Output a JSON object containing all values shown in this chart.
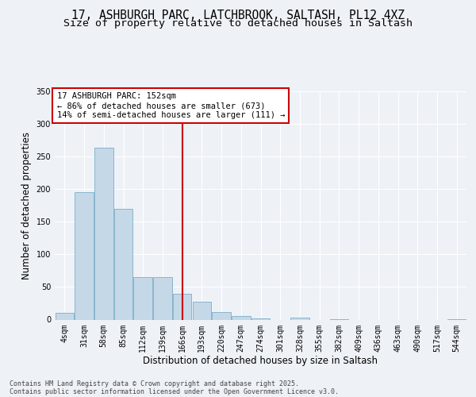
{
  "title_line1": "17, ASHBURGH PARC, LATCHBROOK, SALTASH, PL12 4XZ",
  "title_line2": "Size of property relative to detached houses in Saltash",
  "xlabel": "Distribution of detached houses by size in Saltash",
  "ylabel": "Number of detached properties",
  "bar_labels": [
    "4sqm",
    "31sqm",
    "58sqm",
    "85sqm",
    "112sqm",
    "139sqm",
    "166sqm",
    "193sqm",
    "220sqm",
    "247sqm",
    "274sqm",
    "301sqm",
    "328sqm",
    "355sqm",
    "382sqm",
    "409sqm",
    "436sqm",
    "463sqm",
    "490sqm",
    "517sqm",
    "544sqm"
  ],
  "bar_values": [
    10,
    196,
    263,
    170,
    65,
    65,
    39,
    28,
    12,
    6,
    2,
    0,
    3,
    0,
    1,
    0,
    0,
    0,
    0,
    0,
    1
  ],
  "bar_color": "#c5d8e8",
  "bar_edge_color": "#7aafc8",
  "vline_color": "#cc0000",
  "annotation_text": "17 ASHBURGH PARC: 152sqm\n← 86% of detached houses are smaller (673)\n14% of semi-detached houses are larger (111) →",
  "annotation_box_color": "#ffffff",
  "annotation_box_edge": "#cc0000",
  "ylim": [
    0,
    350
  ],
  "yticks": [
    0,
    50,
    100,
    150,
    200,
    250,
    300,
    350
  ],
  "background_color": "#eef2f7",
  "plot_bg_color": "#eef2f7",
  "footer_line1": "Contains HM Land Registry data © Crown copyright and database right 2025.",
  "footer_line2": "Contains public sector information licensed under the Open Government Licence v3.0.",
  "title_fontsize": 10.5,
  "subtitle_fontsize": 9.5,
  "axis_label_fontsize": 8.5,
  "tick_fontsize": 7,
  "annotation_fontsize": 7.5,
  "footer_fontsize": 6
}
